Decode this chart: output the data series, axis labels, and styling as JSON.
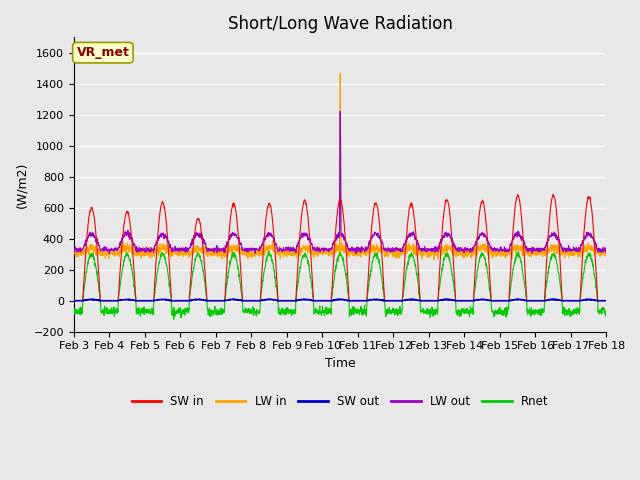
{
  "title": "Short/Long Wave Radiation",
  "ylabel": "(W/m2)",
  "xlabel": "Time",
  "ylim": [
    -200,
    1700
  ],
  "yticks": [
    -200,
    0,
    200,
    400,
    600,
    800,
    1000,
    1200,
    1400,
    1600
  ],
  "plot_bg_color": "#e8e8e8",
  "grid_color": "white",
  "annotation_text": "VR_met",
  "annotation_bg": "#ffffcc",
  "annotation_border": "#999900",
  "annotation_text_color": "#8b0000",
  "series_colors": {
    "SW_in": "#ff0000",
    "LW_in": "#ffa500",
    "SW_out": "#0000cd",
    "LW_out": "#9900cc",
    "Rnet": "#00cc00"
  },
  "legend_labels": [
    "SW in",
    "LW in",
    "SW out",
    "LW out",
    "Rnet"
  ],
  "n_days": 15,
  "start_day": 3,
  "title_fontsize": 12,
  "label_fontsize": 9,
  "tick_fontsize": 8
}
